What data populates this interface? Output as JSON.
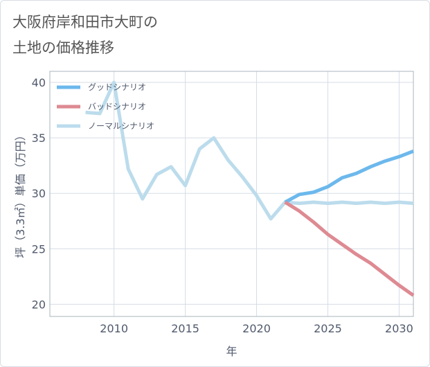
{
  "title": "大阪府岸和田市大町の\n土地の価格推移",
  "chart_data": {
    "type": "line",
    "xlabel": "年",
    "ylabel": "坪（3.3㎡）単価（万円）",
    "xlim": [
      2005.5,
      2031
    ],
    "ylim": [
      18.9,
      41
    ],
    "x_ticks": [
      2010,
      2015,
      2020,
      2025,
      2030
    ],
    "y_ticks": [
      20,
      25,
      30,
      35,
      40
    ],
    "grid": true,
    "legend_position": "top-left",
    "series": [
      {
        "name": "グッドシナリオ",
        "color": "#6cb8ec",
        "x": [
          2022,
          2023,
          2024,
          2025,
          2026,
          2027,
          2028,
          2029,
          2030,
          2031
        ],
        "values": [
          29.2,
          29.9,
          30.1,
          30.6,
          31.4,
          31.8,
          32.4,
          32.9,
          33.3,
          33.8
        ]
      },
      {
        "name": "バッドシナリオ",
        "color": "#de8a92",
        "x": [
          2022,
          2023,
          2024,
          2025,
          2026,
          2027,
          2028,
          2029,
          2030,
          2031
        ],
        "values": [
          29.2,
          28.4,
          27.4,
          26.3,
          25.4,
          24.5,
          23.7,
          22.7,
          21.7,
          20.8
        ]
      },
      {
        "name": "ノーマルシナリオ",
        "color": "#bcdcec",
        "x": [
          2008,
          2009,
          2010,
          2011,
          2012,
          2013,
          2014,
          2015,
          2016,
          2017,
          2018,
          2019,
          2020,
          2021,
          2022,
          2023,
          2024,
          2025,
          2026,
          2027,
          2028,
          2029,
          2030,
          2031
        ],
        "values": [
          37.3,
          37.2,
          40.0,
          32.2,
          29.5,
          31.7,
          32.4,
          30.7,
          34.0,
          35.0,
          33.0,
          31.5,
          29.8,
          27.7,
          29.2,
          29.1,
          29.2,
          29.1,
          29.2,
          29.1,
          29.2,
          29.1,
          29.2,
          29.1
        ]
      }
    ]
  }
}
